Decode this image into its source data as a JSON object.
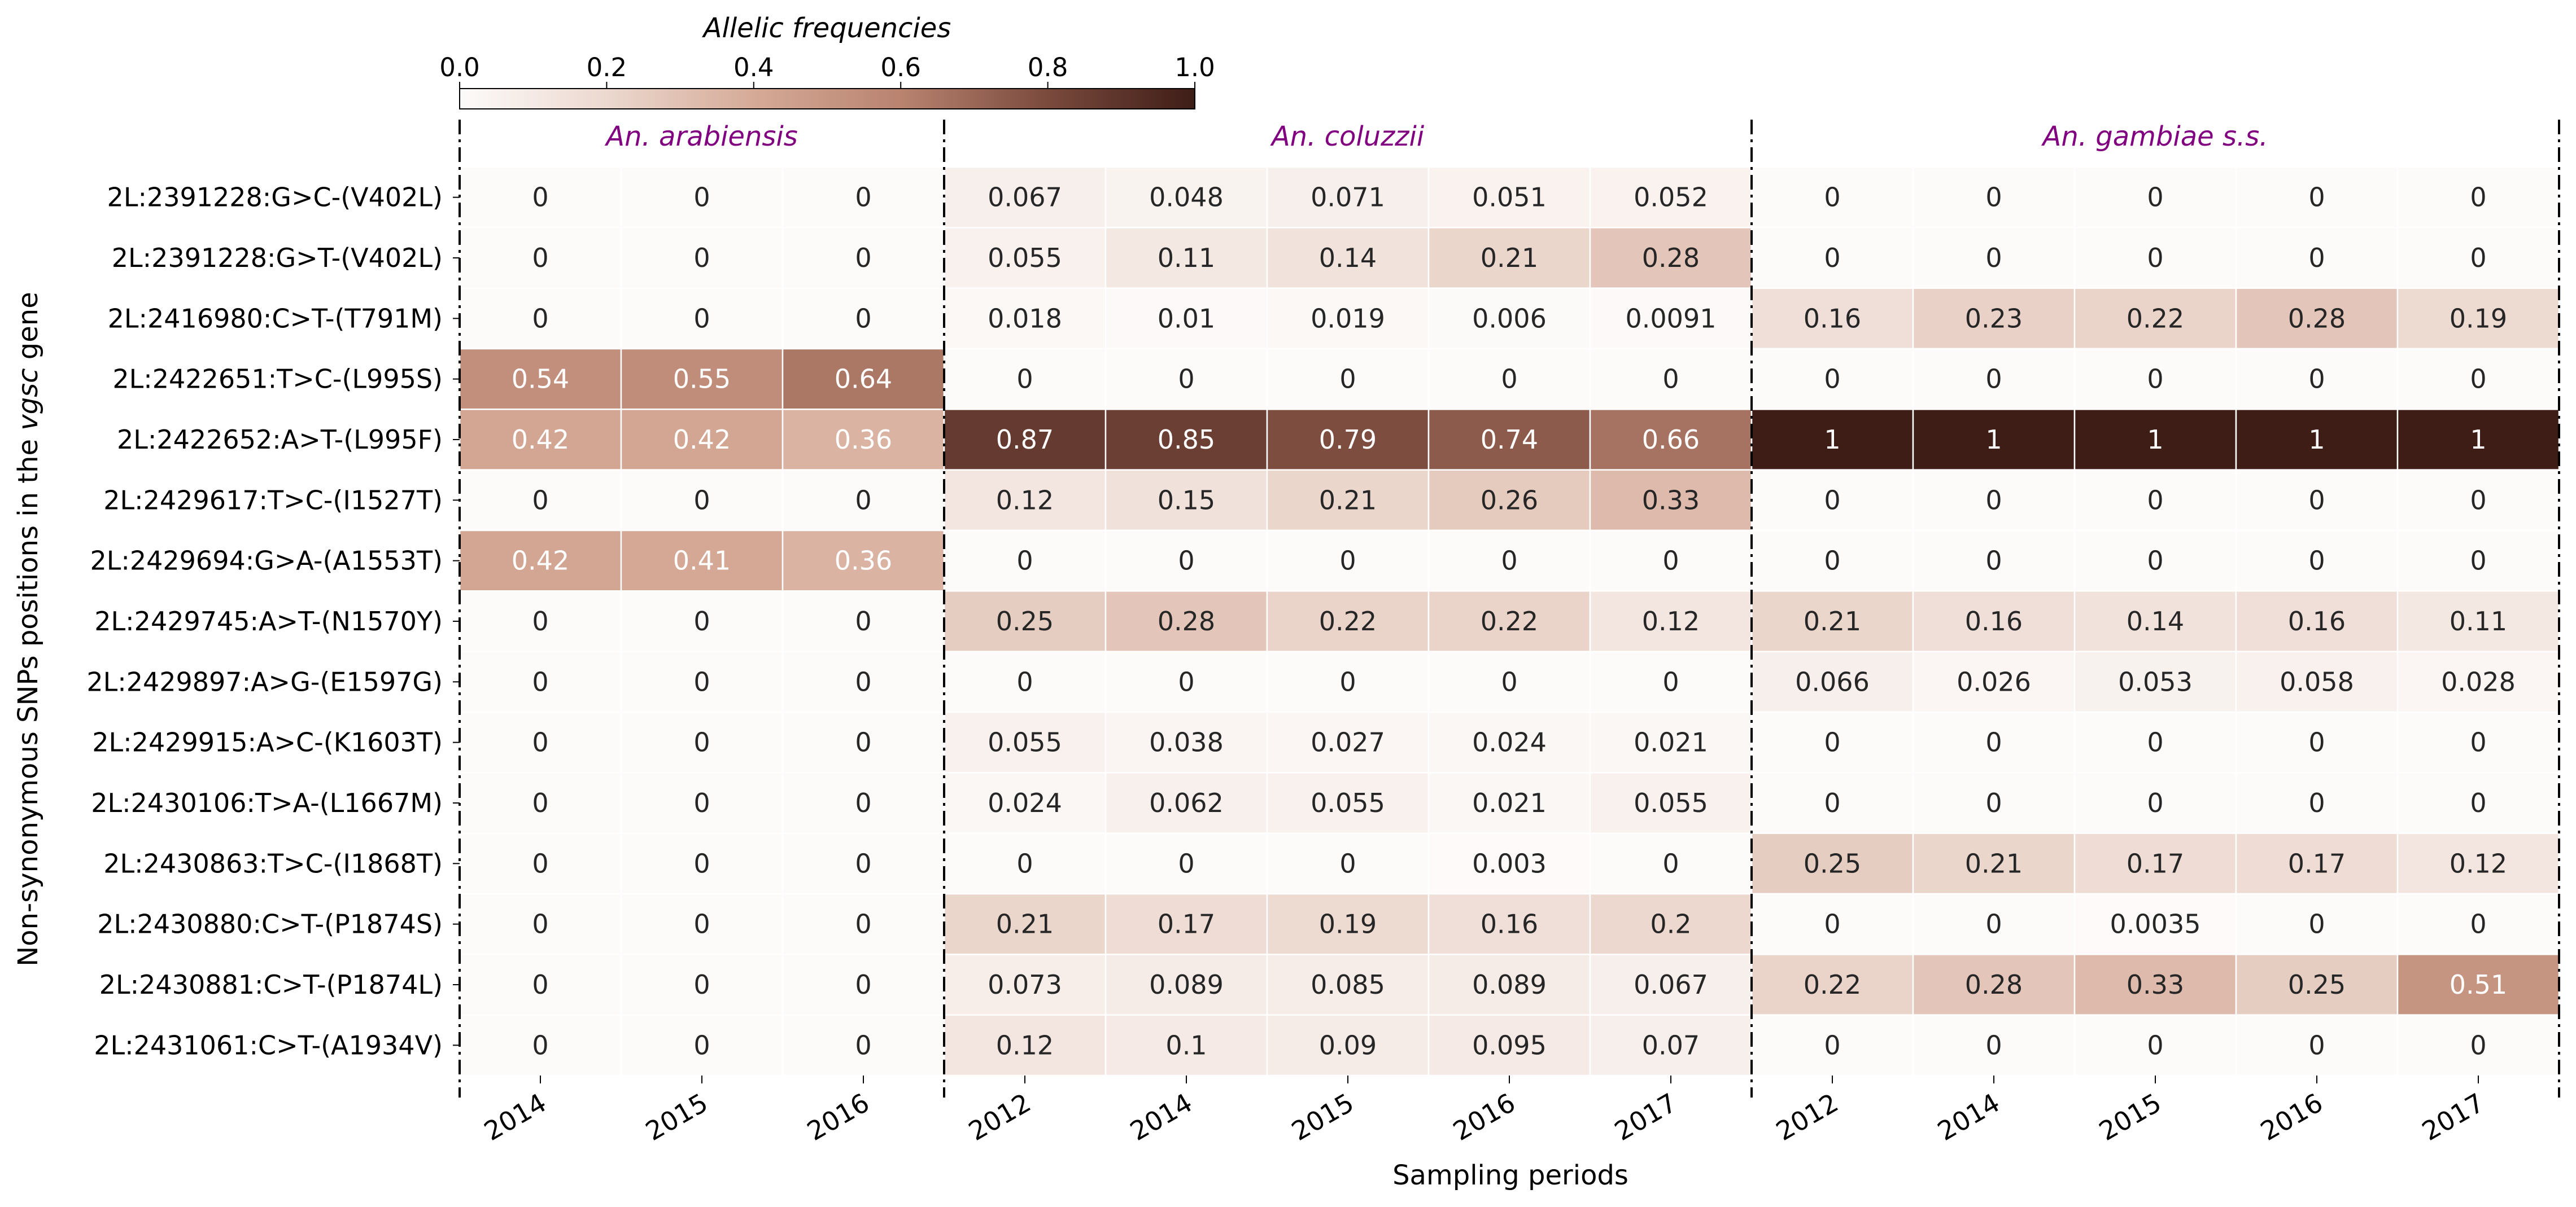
{
  "chart_data": {
    "type": "heatmap",
    "title": "",
    "xlabel": "Sampling periods",
    "ylabel_parts": [
      "Non-synonymous SNPs positions in the ",
      "vgsc",
      " gene"
    ],
    "colorbar": {
      "label": "Allelic frequencies",
      "range": [
        0.0,
        1.0
      ],
      "ticks": [
        "0.0",
        "0.2",
        "0.4",
        "0.6",
        "0.8",
        "1.0"
      ],
      "colors": [
        "#fdfbfa",
        "#ecd8cf",
        "#d5aa97",
        "#b98370",
        "#7a4a3d",
        "#3e1d17"
      ]
    },
    "text_colors": {
      "dark": "#262626",
      "light": "#ffffff",
      "group": "#800080"
    },
    "groups": [
      {
        "label": "An. arabiensis",
        "columns": [
          "2014",
          "2015",
          "2016"
        ]
      },
      {
        "label": "An. coluzzii",
        "columns": [
          "2012",
          "2014",
          "2015",
          "2016",
          "2017"
        ]
      },
      {
        "label": "An. gambiae s.s.",
        "columns": [
          "2012",
          "2014",
          "2015",
          "2016",
          "2017"
        ]
      }
    ],
    "rows": [
      "2L:2391228:G>C-(V402L)",
      "2L:2391228:G>T-(V402L)",
      "2L:2416980:C>T-(T791M)",
      "2L:2422651:T>C-(L995S)",
      "2L:2422652:A>T-(L995F)",
      "2L:2429617:T>C-(I1527T)",
      "2L:2429694:G>A-(A1553T)",
      "2L:2429745:A>T-(N1570Y)",
      "2L:2429897:A>G-(E1597G)",
      "2L:2429915:A>C-(K1603T)",
      "2L:2430106:T>A-(L1667M)",
      "2L:2430863:T>C-(I1868T)",
      "2L:2430880:C>T-(P1874S)",
      "2L:2430881:C>T-(P1874L)",
      "2L:2431061:C>T-(A1934V)"
    ],
    "values": [
      [
        "0",
        "0",
        "0",
        "0.067",
        "0.048",
        "0.071",
        "0.051",
        "0.052",
        "0",
        "0",
        "0",
        "0",
        "0"
      ],
      [
        "0",
        "0",
        "0",
        "0.055",
        "0.11",
        "0.14",
        "0.21",
        "0.28",
        "0",
        "0",
        "0",
        "0",
        "0"
      ],
      [
        "0",
        "0",
        "0",
        "0.018",
        "0.01",
        "0.019",
        "0.006",
        "0.0091",
        "0.16",
        "0.23",
        "0.22",
        "0.28",
        "0.19"
      ],
      [
        "0.54",
        "0.55",
        "0.64",
        "0",
        "0",
        "0",
        "0",
        "0",
        "0",
        "0",
        "0",
        "0",
        "0"
      ],
      [
        "0.42",
        "0.42",
        "0.36",
        "0.87",
        "0.85",
        "0.79",
        "0.74",
        "0.66",
        "1",
        "1",
        "1",
        "1",
        "1"
      ],
      [
        "0",
        "0",
        "0",
        "0.12",
        "0.15",
        "0.21",
        "0.26",
        "0.33",
        "0",
        "0",
        "0",
        "0",
        "0"
      ],
      [
        "0.42",
        "0.41",
        "0.36",
        "0",
        "0",
        "0",
        "0",
        "0",
        "0",
        "0",
        "0",
        "0",
        "0"
      ],
      [
        "0",
        "0",
        "0",
        "0.25",
        "0.28",
        "0.22",
        "0.22",
        "0.12",
        "0.21",
        "0.16",
        "0.14",
        "0.16",
        "0.11"
      ],
      [
        "0",
        "0",
        "0",
        "0",
        "0",
        "0",
        "0",
        "0",
        "0.066",
        "0.026",
        "0.053",
        "0.058",
        "0.028"
      ],
      [
        "0",
        "0",
        "0",
        "0.055",
        "0.038",
        "0.027",
        "0.024",
        "0.021",
        "0",
        "0",
        "0",
        "0",
        "0"
      ],
      [
        "0",
        "0",
        "0",
        "0.024",
        "0.062",
        "0.055",
        "0.021",
        "0.055",
        "0",
        "0",
        "0",
        "0",
        "0"
      ],
      [
        "0",
        "0",
        "0",
        "0",
        "0",
        "0",
        "0.003",
        "0",
        "0.25",
        "0.21",
        "0.17",
        "0.17",
        "0.12"
      ],
      [
        "0",
        "0",
        "0",
        "0.21",
        "0.17",
        "0.19",
        "0.16",
        "0.2",
        "0",
        "0",
        "0.0035",
        "0",
        "0"
      ],
      [
        "0",
        "0",
        "0",
        "0.073",
        "0.089",
        "0.085",
        "0.089",
        "0.067",
        "0.22",
        "0.28",
        "0.33",
        "0.25",
        "0.51"
      ],
      [
        "0",
        "0",
        "0",
        "0.12",
        "0.1",
        "0.09",
        "0.095",
        "0.07",
        "0",
        "0",
        "0",
        "0",
        "0"
      ]
    ]
  }
}
